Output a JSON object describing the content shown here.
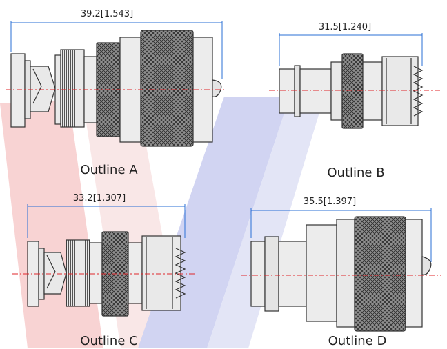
{
  "outlines": [
    {
      "label": "Outline A",
      "dimension": "39.2[1.543]"
    },
    {
      "label": "Outline B",
      "dimension": "31.5[1.240]"
    },
    {
      "label": "Outline C",
      "dimension": "33.2[1.307]"
    },
    {
      "label": "Outline D",
      "dimension": "35.5[1.397]"
    }
  ],
  "colors": {
    "dimension_line": "#2a6fd6",
    "centerline": "#e0262a",
    "body_fill": "#ececec",
    "stroke": "#333333",
    "knurl_fill": "#9a9a9a",
    "watermark_red": "#f7c9c9",
    "watermark_blue": "#c9ccef"
  }
}
